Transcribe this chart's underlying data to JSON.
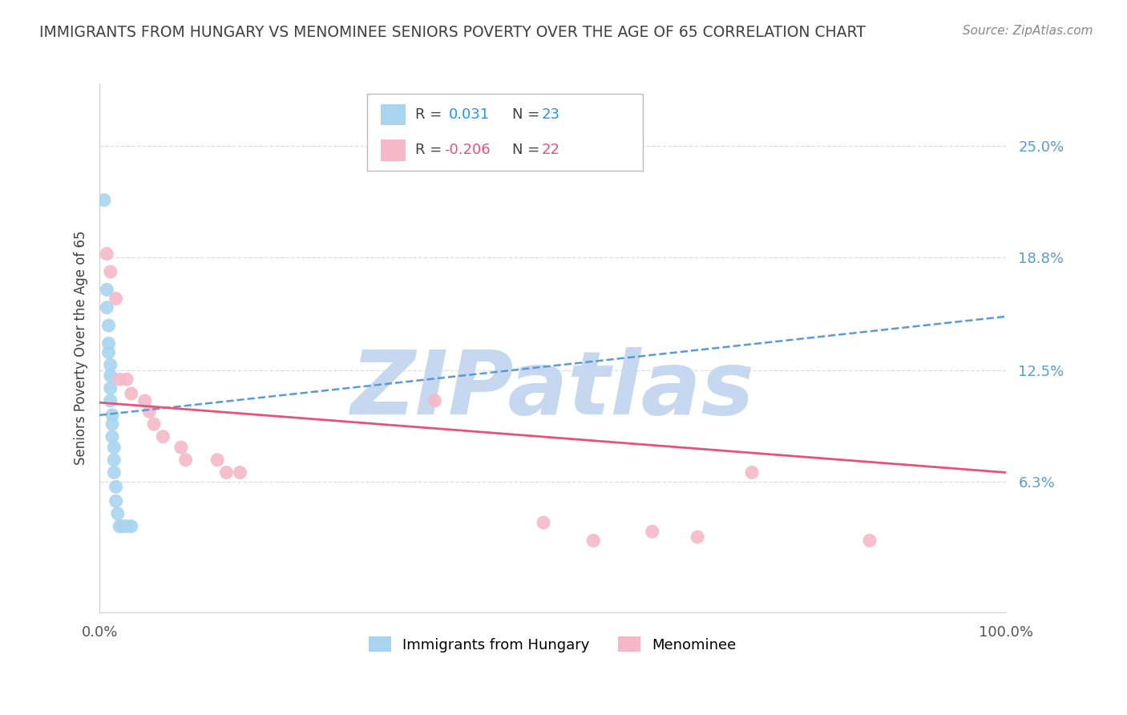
{
  "title": "IMMIGRANTS FROM HUNGARY VS MENOMINEE SENIORS POVERTY OVER THE AGE OF 65 CORRELATION CHART",
  "source": "Source: ZipAtlas.com",
  "ylabel": "Seniors Poverty Over the Age of 65",
  "xlim": [
    0.0,
    1.0
  ],
  "ylim": [
    -0.01,
    0.285
  ],
  "yticks": [
    0.063,
    0.125,
    0.188,
    0.25
  ],
  "ytick_labels": [
    "6.3%",
    "12.5%",
    "18.8%",
    "25.0%"
  ],
  "xticks": [
    0.0,
    1.0
  ],
  "xtick_labels": [
    "0.0%",
    "100.0%"
  ],
  "legend_label1": "Immigrants from Hungary",
  "legend_label2": "Menominee",
  "blue_color": "#A8D4F0",
  "blue_line_color": "#5B9BD5",
  "pink_color": "#F5B8C8",
  "pink_line_color": "#E8527A",
  "blue_r_color": "#2196F3",
  "pink_r_color": "#E8527A",
  "blue_n_color": "#2196F3",
  "pink_n_color": "#E8527A",
  "blue_scatter_x": [
    0.005,
    0.008,
    0.008,
    0.01,
    0.01,
    0.01,
    0.012,
    0.012,
    0.012,
    0.012,
    0.014,
    0.014,
    0.014,
    0.016,
    0.016,
    0.016,
    0.018,
    0.018,
    0.02,
    0.022,
    0.025,
    0.03,
    0.035
  ],
  "blue_scatter_y": [
    0.22,
    0.17,
    0.16,
    0.15,
    0.14,
    0.135,
    0.128,
    0.122,
    0.115,
    0.108,
    0.1,
    0.095,
    0.088,
    0.082,
    0.075,
    0.068,
    0.06,
    0.052,
    0.045,
    0.038,
    0.038,
    0.038,
    0.038
  ],
  "pink_scatter_x": [
    0.008,
    0.012,
    0.018,
    0.022,
    0.03,
    0.035,
    0.05,
    0.055,
    0.06,
    0.07,
    0.09,
    0.095,
    0.13,
    0.14,
    0.155,
    0.37,
    0.49,
    0.545,
    0.61,
    0.66,
    0.72,
    0.85
  ],
  "pink_scatter_y": [
    0.19,
    0.18,
    0.165,
    0.12,
    0.12,
    0.112,
    0.108,
    0.102,
    0.095,
    0.088,
    0.082,
    0.075,
    0.075,
    0.068,
    0.068,
    0.108,
    0.04,
    0.03,
    0.035,
    0.032,
    0.068,
    0.03
  ],
  "blue_line_x0": 0.0,
  "blue_line_x1": 1.0,
  "blue_line_y0": 0.1,
  "blue_line_y1": 0.155,
  "pink_line_x0": 0.0,
  "pink_line_x1": 1.0,
  "pink_line_y0": 0.107,
  "pink_line_y1": 0.068,
  "watermark_text": "ZIPatlas",
  "watermark_color": "#C5D8F0",
  "background_color": "#FFFFFF",
  "grid_color": "#DDDDDD",
  "title_color": "#404040",
  "source_color": "#888888",
  "ylabel_color": "#404040",
  "tick_color": "#555555",
  "figsize": [
    14.06,
    8.92
  ],
  "dpi": 100
}
